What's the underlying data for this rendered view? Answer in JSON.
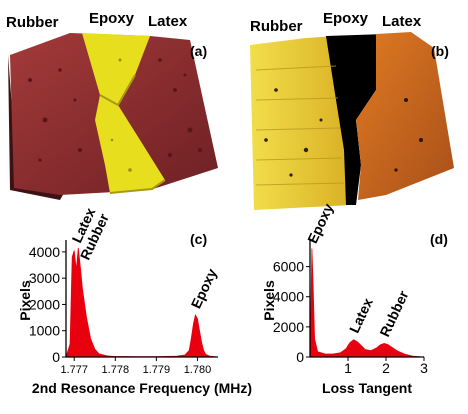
{
  "panel_a": {
    "tag": "(a)",
    "labels": {
      "left": "Rubber",
      "mid": "Epoxy",
      "right": "Latex"
    },
    "colors": {
      "matrix": "#8b2d30",
      "epoxy": "#e7df1e"
    }
  },
  "panel_b": {
    "tag": "(b)",
    "labels": {
      "left": "Rubber",
      "mid": "Epoxy",
      "right": "Latex"
    },
    "colors": {
      "rubber": "#e6c832",
      "epoxy": "#000000",
      "latex": "#c8641e"
    }
  },
  "chart_data": [
    {
      "type": "area",
      "tag": "(c)",
      "xlabel": "2nd Resonance Frequency (MHz)",
      "ylabel": "Pixels",
      "xlim": [
        1.7768,
        1.7805
      ],
      "ylim": [
        0,
        4300
      ],
      "xticks": [
        1.777,
        1.778,
        1.779,
        1.78
      ],
      "xtick_labels": [
        "1.777",
        "1.778",
        "1.779",
        "1.780"
      ],
      "yticks": [
        0,
        1000,
        2000,
        3000,
        4000
      ],
      "color": "#e8000f",
      "x": [
        1.7768,
        1.7769,
        1.77695,
        1.777,
        1.77705,
        1.7771,
        1.77715,
        1.7772,
        1.7773,
        1.7774,
        1.7775,
        1.7776,
        1.7778,
        1.778,
        1.7785,
        1.779,
        1.7795,
        1.7797,
        1.7798,
        1.77985,
        1.7799,
        1.77995,
        1.78,
        1.78005,
        1.7801,
        1.78015,
        1.7802,
        1.7803,
        1.7805
      ],
      "y": [
        0,
        500,
        3800,
        4050,
        3300,
        4150,
        3400,
        2600,
        1500,
        700,
        300,
        120,
        40,
        20,
        15,
        15,
        30,
        80,
        250,
        700,
        1250,
        1600,
        1450,
        1000,
        550,
        250,
        100,
        30,
        0
      ],
      "annotations": [
        {
          "text": "Latex",
          "x": 1.77705,
          "y": 4150
        },
        {
          "text": "Rubber",
          "x": 1.77725,
          "y": 3500
        },
        {
          "text": "Epoxy",
          "x": 1.77995,
          "y": 1650
        }
      ]
    },
    {
      "type": "area",
      "tag": "(d)",
      "xlabel": "Loss Tangent",
      "ylabel": "Pixels",
      "xlim": [
        0,
        3.0
      ],
      "ylim": [
        0,
        7500
      ],
      "xticks": [
        1,
        2,
        3
      ],
      "xtick_labels": [
        "1",
        "2",
        "3"
      ],
      "yticks": [
        0,
        2000,
        4000,
        6000
      ],
      "color": "#e8000f",
      "x": [
        0,
        0.02,
        0.05,
        0.08,
        0.12,
        0.2,
        0.4,
        0.6,
        0.8,
        0.95,
        1.05,
        1.15,
        1.25,
        1.35,
        1.45,
        1.6,
        1.75,
        1.85,
        1.95,
        2.05,
        2.15,
        2.3,
        2.5,
        2.7,
        2.9,
        3.0
      ],
      "y": [
        0,
        2500,
        7200,
        5000,
        1200,
        350,
        200,
        200,
        280,
        550,
        950,
        1150,
        1000,
        750,
        500,
        420,
        600,
        800,
        900,
        820,
        650,
        400,
        180,
        60,
        15,
        0
      ],
      "annotations": [
        {
          "text": "Epoxy",
          "x": 0.05,
          "y": 7200
        },
        {
          "text": "Latex",
          "x": 1.15,
          "y": 1250
        },
        {
          "text": "Rubber",
          "x": 1.95,
          "y": 1000
        }
      ]
    }
  ]
}
